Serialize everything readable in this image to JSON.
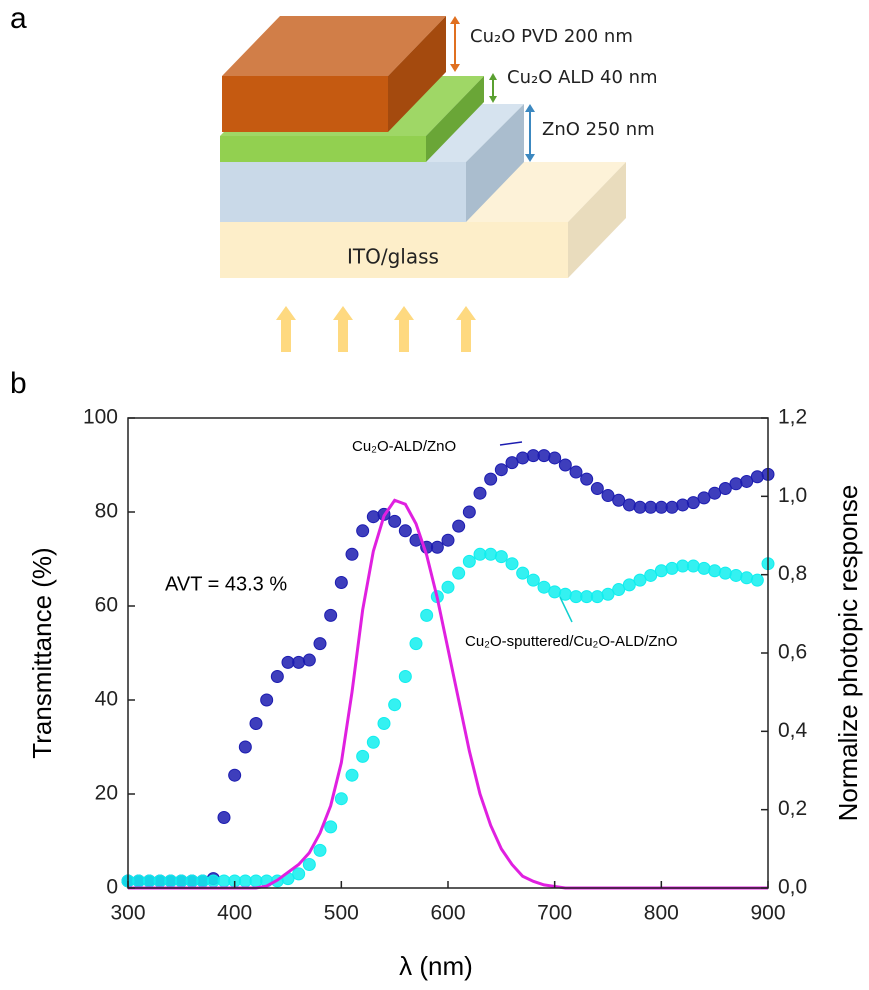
{
  "panel_a": {
    "label": "a",
    "layers": [
      "Cu₂O PVD 200 nm",
      "Cu₂O ALD 40 nm",
      "ZnO 250 nm"
    ],
    "substrate": "ITO/glass"
  },
  "panel_b": {
    "label": "b"
  },
  "chart_data": {
    "type": "scatter",
    "x_label": "λ (nm)",
    "y_label": "Transmittance (%)",
    "y2_label": "Normalize photopic response",
    "annotations": [
      "AVT = 43.3 %"
    ],
    "x": [
      300,
      310,
      320,
      330,
      340,
      350,
      360,
      370,
      380,
      390,
      400,
      410,
      420,
      430,
      440,
      450,
      460,
      470,
      480,
      490,
      500,
      510,
      520,
      530,
      540,
      550,
      560,
      570,
      580,
      590,
      600,
      610,
      620,
      630,
      640,
      650,
      660,
      670,
      680,
      690,
      700,
      710,
      720,
      730,
      740,
      750,
      760,
      770,
      780,
      790,
      800,
      810,
      820,
      830,
      840,
      850,
      860,
      870,
      880,
      890,
      900
    ],
    "series": [
      {
        "name": "Cu₂O-ALD/ZnO",
        "color": "#1c1cb0",
        "marker": "circle",
        "values": [
          1.5,
          1.5,
          1.5,
          1.5,
          1.5,
          1.5,
          1.5,
          1.5,
          2,
          15,
          24,
          30,
          35,
          40,
          45,
          48,
          48,
          48.5,
          52,
          58,
          65,
          71,
          76,
          79,
          79.5,
          78,
          76,
          74,
          72.5,
          72.5,
          74,
          77,
          80,
          84,
          87,
          89,
          90.5,
          91.5,
          92,
          92,
          91.5,
          90,
          88.5,
          87,
          85,
          83.5,
          82.5,
          81.5,
          81,
          81,
          81,
          81,
          81.5,
          82,
          83,
          84,
          85,
          86,
          86.5,
          87.5,
          88
        ]
      },
      {
        "name": "Cu₂O-sputtered/Cu₂O-ALD/ZnO",
        "color": "#10eeee",
        "marker": "circle",
        "values": [
          1.5,
          1.5,
          1.5,
          1.5,
          1.5,
          1.5,
          1.5,
          1.5,
          1.5,
          1.5,
          1.5,
          1.5,
          1.5,
          1.5,
          1.5,
          2,
          3,
          5,
          8,
          13,
          19,
          24,
          28,
          31,
          35,
          39,
          45,
          52,
          58,
          62,
          64,
          67,
          69.5,
          71,
          71,
          70.5,
          69,
          67,
          65.5,
          64,
          63,
          62.5,
          62,
          62,
          62,
          62.5,
          63.5,
          64.5,
          65.5,
          66.5,
          67.5,
          68,
          68.5,
          68.5,
          68,
          67.5,
          67,
          66.5,
          66,
          65.5,
          69
        ]
      },
      {
        "color": "#e020e0",
        "marker": "line",
        "axis": "y2",
        "values": [
          0,
          0,
          0,
          0,
          0,
          0,
          0,
          0,
          0,
          0,
          0,
          0,
          0,
          0.005,
          0.02,
          0.04,
          0.06,
          0.09,
          0.14,
          0.21,
          0.32,
          0.5,
          0.71,
          0.86,
          0.95,
          0.99,
          0.98,
          0.93,
          0.85,
          0.74,
          0.61,
          0.48,
          0.35,
          0.24,
          0.16,
          0.1,
          0.06,
          0.03,
          0.017,
          0.008,
          0.004,
          0,
          0,
          0,
          0,
          0,
          0,
          0,
          0,
          0,
          0,
          0,
          0,
          0,
          0,
          0,
          0,
          0,
          0,
          0,
          0
        ]
      }
    ],
    "xlim": [
      300,
      900
    ],
    "xticks": [
      300,
      400,
      500,
      600,
      700,
      800,
      900
    ],
    "ylim": [
      0,
      100
    ],
    "yticks": [
      0,
      20,
      40,
      60,
      80,
      100
    ],
    "y2lim": [
      0,
      1.2
    ],
    "y2ticks": [
      {
        "value": 0,
        "label": "0,0"
      },
      {
        "value": 0.2,
        "label": "0,2"
      },
      {
        "value": 0.4,
        "label": "0,4"
      },
      {
        "value": 0.6,
        "label": "0,6"
      },
      {
        "value": 0.8,
        "label": "0,8"
      },
      {
        "value": 1.0,
        "label": "1,0"
      },
      {
        "value": 1.2,
        "label": "1,2"
      }
    ]
  }
}
